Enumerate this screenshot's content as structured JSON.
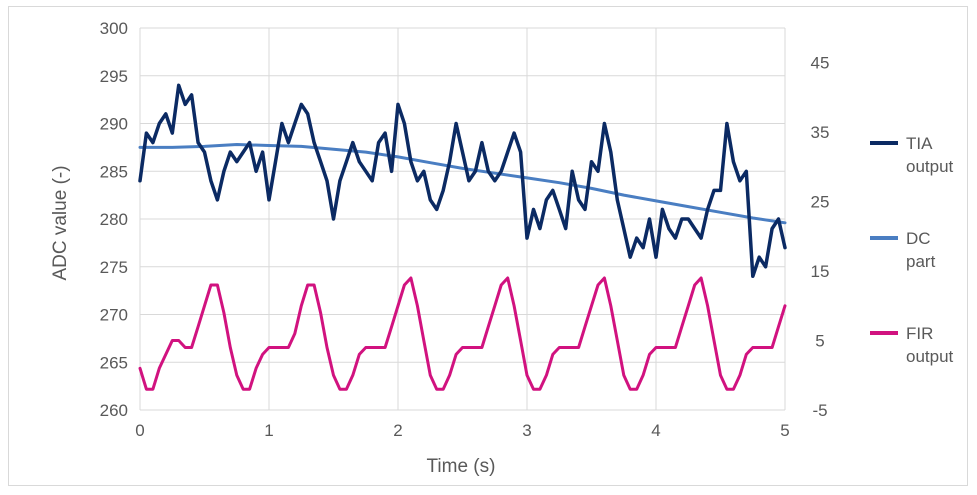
{
  "chart_data": {
    "type": "line",
    "title": "",
    "xlabel": "Time (s)",
    "ylabel": "ADC value (-)",
    "xlim": [
      0,
      5
    ],
    "ylim": [
      260,
      300
    ],
    "y2lim": [
      -5,
      50
    ],
    "x_ticks": [
      "0",
      "1",
      "2",
      "3",
      "4",
      "5"
    ],
    "y_ticks": [
      "260",
      "265",
      "270",
      "275",
      "280",
      "285",
      "290",
      "295",
      "300"
    ],
    "y2_ticks": [
      "-5",
      "5",
      "15",
      "25",
      "35",
      "45"
    ],
    "grid": true,
    "legend_position": "right",
    "series": [
      {
        "name": "TIA output",
        "axis": "left",
        "color": "#0b2a63",
        "x": [
          0,
          0.05,
          0.1,
          0.15,
          0.2,
          0.25,
          0.3,
          0.35,
          0.4,
          0.45,
          0.5,
          0.55,
          0.6,
          0.65,
          0.7,
          0.75,
          0.8,
          0.85,
          0.9,
          0.95,
          1.0,
          1.05,
          1.1,
          1.15,
          1.2,
          1.25,
          1.3,
          1.35,
          1.4,
          1.45,
          1.5,
          1.55,
          1.6,
          1.65,
          1.7,
          1.75,
          1.8,
          1.85,
          1.9,
          1.95,
          2.0,
          2.05,
          2.1,
          2.15,
          2.2,
          2.25,
          2.3,
          2.35,
          2.4,
          2.45,
          2.5,
          2.55,
          2.6,
          2.65,
          2.7,
          2.75,
          2.8,
          2.85,
          2.9,
          2.95,
          3.0,
          3.05,
          3.1,
          3.15,
          3.2,
          3.25,
          3.3,
          3.35,
          3.4,
          3.45,
          3.5,
          3.55,
          3.6,
          3.65,
          3.7,
          3.75,
          3.8,
          3.85,
          3.9,
          3.95,
          4.0,
          4.05,
          4.1,
          4.15,
          4.2,
          4.25,
          4.3,
          4.35,
          4.4,
          4.45,
          4.5,
          4.55,
          4.6,
          4.65,
          4.7,
          4.75,
          4.8,
          4.85,
          4.9,
          4.95,
          5.0
        ],
        "values": [
          284,
          289,
          288,
          290,
          291,
          289,
          294,
          292,
          293,
          288,
          287,
          284,
          282,
          285,
          287,
          286,
          287,
          288,
          285,
          287,
          282,
          286,
          290,
          288,
          290,
          292,
          291,
          288,
          286,
          284,
          280,
          284,
          286,
          288,
          286,
          285,
          284,
          288,
          289,
          285,
          292,
          290,
          286,
          284,
          285,
          282,
          281,
          283,
          286,
          290,
          287,
          284,
          285,
          288,
          285,
          284,
          285,
          287,
          289,
          287,
          278,
          281,
          279,
          282,
          283,
          281,
          279,
          285,
          282,
          281,
          286,
          285,
          290,
          287,
          282,
          279,
          276,
          278,
          277,
          280,
          276,
          281,
          279,
          278,
          280,
          280,
          279,
          278,
          281,
          283,
          283,
          290,
          286,
          284,
          285,
          274,
          276,
          275,
          279,
          280,
          277
        ]
      },
      {
        "name": "DC part",
        "axis": "left",
        "color": "#4a7ec2",
        "x": [
          0,
          0.25,
          0.5,
          0.75,
          1.0,
          1.25,
          1.5,
          1.75,
          2.0,
          2.25,
          2.5,
          2.75,
          3.0,
          3.25,
          3.5,
          3.75,
          4.0,
          4.25,
          4.5,
          4.75,
          5.0
        ],
        "values": [
          287.5,
          287.5,
          287.6,
          287.8,
          287.7,
          287.6,
          287.3,
          287,
          286.5,
          285.9,
          285.3,
          284.8,
          284.3,
          283.8,
          283.2,
          282.5,
          281.9,
          281.3,
          280.7,
          280.1,
          279.6
        ]
      },
      {
        "name": "FIR output",
        "axis": "right",
        "color": "#d1127f",
        "x": [
          0,
          0.05,
          0.1,
          0.15,
          0.2,
          0.25,
          0.3,
          0.35,
          0.4,
          0.45,
          0.5,
          0.55,
          0.6,
          0.65,
          0.7,
          0.75,
          0.8,
          0.85,
          0.9,
          0.95,
          1.0,
          1.05,
          1.1,
          1.15,
          1.2,
          1.25,
          1.3,
          1.35,
          1.4,
          1.45,
          1.5,
          1.55,
          1.6,
          1.65,
          1.7,
          1.75,
          1.8,
          1.85,
          1.9,
          1.95,
          2.0,
          2.05,
          2.1,
          2.15,
          2.2,
          2.25,
          2.3,
          2.35,
          2.4,
          2.45,
          2.5,
          2.55,
          2.6,
          2.65,
          2.7,
          2.75,
          2.8,
          2.85,
          2.9,
          2.95,
          3.0,
          3.05,
          3.1,
          3.15,
          3.2,
          3.25,
          3.3,
          3.35,
          3.4,
          3.45,
          3.5,
          3.55,
          3.6,
          3.65,
          3.7,
          3.75,
          3.8,
          3.85,
          3.9,
          3.95,
          4.0,
          4.05,
          4.1,
          4.15,
          4.2,
          4.25,
          4.3,
          4.35,
          4.4,
          4.45,
          4.5,
          4.55,
          4.6,
          4.65,
          4.7,
          4.75,
          4.8,
          4.85,
          4.9,
          4.95,
          5.0
        ],
        "values": [
          1,
          -2,
          -2,
          1,
          3,
          5,
          5,
          4,
          4,
          7,
          10,
          13,
          13,
          9,
          4,
          0,
          -2,
          -2,
          1,
          3,
          4,
          4,
          4,
          4,
          6,
          10,
          13,
          13,
          9,
          4,
          0,
          -2,
          -2,
          0,
          3,
          4,
          4,
          4,
          4,
          7,
          10,
          13,
          14,
          10,
          5,
          0,
          -2,
          -2,
          0,
          3,
          4,
          4,
          4,
          4,
          7,
          10,
          13,
          14,
          10,
          5,
          0,
          -2,
          -2,
          0,
          3,
          4,
          4,
          4,
          4,
          7,
          10,
          13,
          14,
          10,
          5,
          0,
          -2,
          -2,
          0,
          3,
          4,
          4,
          4,
          4,
          7,
          10,
          13,
          14,
          10,
          5,
          0,
          -2,
          -2,
          0,
          3,
          4,
          4,
          4,
          4,
          7,
          10
        ]
      }
    ]
  }
}
